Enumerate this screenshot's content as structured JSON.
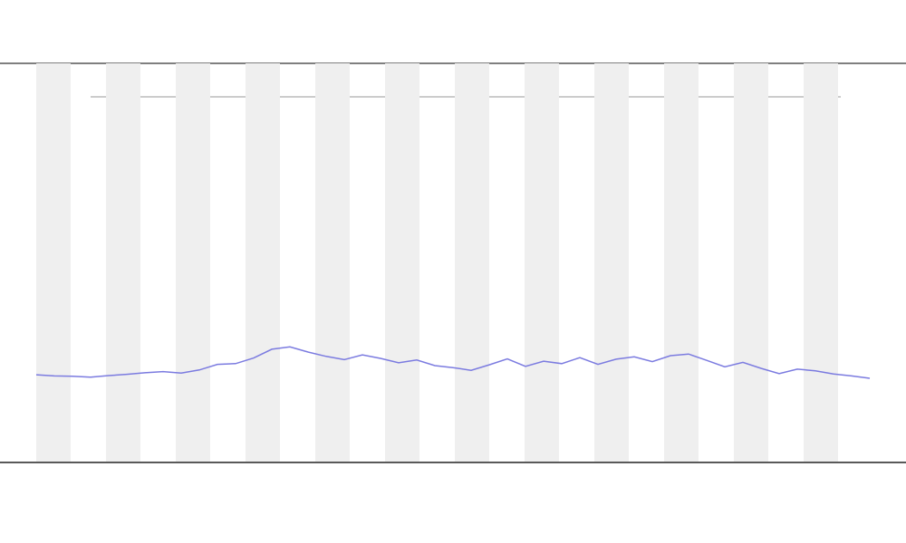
{
  "chart_data": {
    "type": "line",
    "x": [
      0,
      1,
      2,
      3,
      4,
      5,
      6,
      7,
      8,
      9,
      10,
      11,
      12,
      13,
      14,
      15,
      16,
      17,
      18,
      19,
      20,
      21,
      22,
      23,
      24,
      25,
      26,
      27,
      28,
      29,
      30,
      31,
      32,
      33,
      34,
      35,
      36,
      37,
      38,
      39,
      40,
      41,
      42,
      43,
      44,
      45,
      46
    ],
    "series": [
      {
        "color": "#7b7be0",
        "values": [
          21.8,
          21.5,
          21.4,
          21.2,
          21.6,
          21.9,
          22.3,
          22.6,
          22.2,
          23.0,
          24.4,
          24.6,
          26.0,
          28.2,
          28.8,
          27.5,
          26.4,
          25.6,
          26.8,
          25.9,
          24.8,
          25.5,
          24.1,
          23.6,
          22.9,
          24.3,
          25.8,
          23.9,
          25.2,
          24.6,
          26.1,
          24.4,
          25.7,
          26.3,
          25.1,
          26.6,
          27.0,
          25.4,
          23.8,
          24.9,
          23.4,
          22.1,
          23.2,
          22.8,
          22.0,
          21.5,
          20.9
        ]
      }
    ],
    "xlim": [
      -2,
      48
    ],
    "ylim": [
      0,
      100
    ]
  }
}
